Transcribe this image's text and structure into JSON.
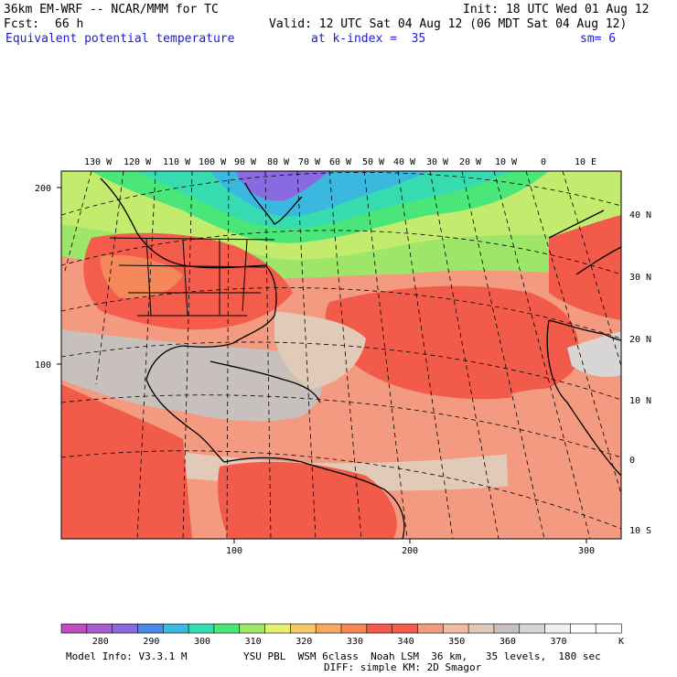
{
  "header": {
    "model_title": "36km EM-WRF -- NCAR/MMM for TC",
    "init": "Init: 18 UTC Wed 01 Aug 12",
    "fcst_label": "Fcst:",
    "fcst_value": "66 h",
    "valid": "Valid: 12 UTC Sat 04 Aug 12 (06 MDT Sat 04 Aug 12)",
    "field": "Equivalent potential temperature",
    "level": "at k-index =  35",
    "smoothing": "sm= 6"
  },
  "map": {
    "lon_labels": [
      "130 W",
      "120 W",
      "110 W",
      "100 W",
      "90 W",
      "80 W",
      "70 W",
      "60 W",
      "50 W",
      "40 W",
      "30 W",
      "20 W",
      "10 W",
      "0",
      "10 E"
    ],
    "lat_labels": [
      "40 N",
      "30 N",
      "20 N",
      "10 N",
      "0",
      "10 S"
    ],
    "y_grid_labels": [
      "200",
      "100"
    ],
    "x_grid_labels": [
      "100",
      "200",
      "300"
    ]
  },
  "colorbar": {
    "colors": [
      "#c04ec0",
      "#a65ec8",
      "#8a6ae0",
      "#4a8ae8",
      "#3ab8e0",
      "#36dcb0",
      "#4ae67a",
      "#9ee66a",
      "#e8f070",
      "#f6c868",
      "#f4a860",
      "#f48858",
      "#f25a4a",
      "#f45c4c",
      "#f49a80",
      "#f0bca4",
      "#e2cab8",
      "#c8c0bc",
      "#d8d6d4",
      "#f0f0f0",
      "#ffffff",
      "#ffffff"
    ],
    "labels": [
      "280",
      "290",
      "300",
      "310",
      "320",
      "330",
      "340",
      "350",
      "360",
      "370"
    ],
    "unit": "K"
  },
  "footer": {
    "model_info": "Model Info: V3.3.1 M",
    "physics": "YSU PBL  WSM 6class  Noah LSM  36 km,   35 levels,  180 sec",
    "diffusion": "DIFF: simple KM: 2D Smagor"
  }
}
